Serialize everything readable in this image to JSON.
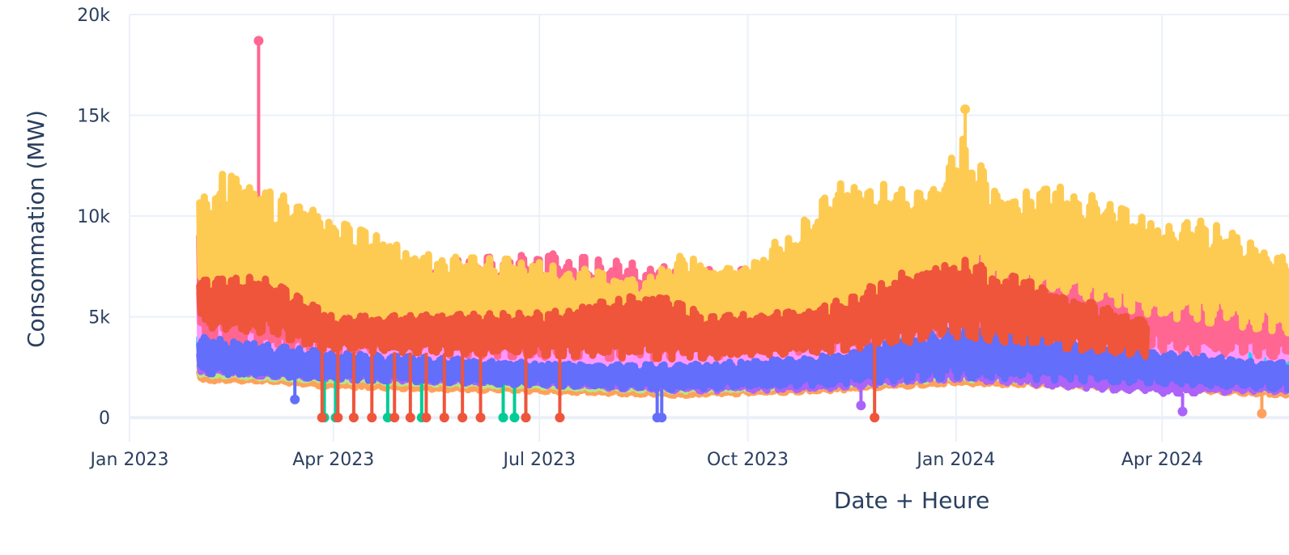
{
  "chart_data": {
    "type": "line",
    "xlabel": "Date + Heure",
    "ylabel": "Consommation (MW)",
    "x_range": [
      "2023-01-01",
      "2024-05-27"
    ],
    "ylim": [
      -1200,
      20000
    ],
    "x_ticks": [
      {
        "date": "2023-01-01",
        "label": "Jan 2023"
      },
      {
        "date": "2023-04-01",
        "label": "Apr 2023"
      },
      {
        "date": "2023-07-01",
        "label": "Jul 2023"
      },
      {
        "date": "2023-10-01",
        "label": "Oct 2023"
      },
      {
        "date": "2024-01-01",
        "label": "Jan 2024"
      },
      {
        "date": "2024-04-01",
        "label": "Apr 2024"
      }
    ],
    "y_ticks": [
      {
        "value": 0,
        "label": "0"
      },
      {
        "value": 5000,
        "label": "5k"
      },
      {
        "value": 10000,
        "label": "10k"
      },
      {
        "value": 15000,
        "label": "15k"
      },
      {
        "value": 20000,
        "label": "20k"
      }
    ],
    "grid": true,
    "legend": "none",
    "series": [
      {
        "color": "#FFA15A",
        "low": [
          [
            "2023-02-01",
            1800
          ],
          [
            "2023-03-01",
            1800
          ],
          [
            "2023-04-01",
            1500
          ],
          [
            "2023-07-01",
            1300
          ],
          [
            "2023-09-01",
            1100
          ],
          [
            "2023-11-01",
            1300
          ],
          [
            "2024-01-01",
            1700
          ],
          [
            "2024-04-01",
            1400
          ],
          [
            "2024-05-27",
            1100
          ]
        ],
        "high": [
          [
            "2023-02-01",
            2400
          ],
          [
            "2023-03-01",
            2400
          ],
          [
            "2023-04-01",
            2100
          ],
          [
            "2023-07-01",
            1800
          ],
          [
            "2023-09-01",
            1600
          ],
          [
            "2023-11-01",
            1900
          ],
          [
            "2024-01-01",
            2300
          ],
          [
            "2024-04-01",
            1900
          ],
          [
            "2024-05-27",
            1600
          ]
        ],
        "spikes": [
          [
            "2024-05-15",
            200
          ]
        ]
      },
      {
        "color": "#B6E880",
        "low": [
          [
            "2023-02-01",
            2100
          ],
          [
            "2023-04-01",
            1800
          ],
          [
            "2023-07-01",
            1500
          ],
          [
            "2023-09-01",
            1300
          ],
          [
            "2023-11-01",
            1500
          ],
          [
            "2024-01-01",
            1900
          ],
          [
            "2024-04-01",
            1600
          ],
          [
            "2024-05-27",
            1300
          ]
        ],
        "high": [
          [
            "2023-02-01",
            2600
          ],
          [
            "2023-04-01",
            2300
          ],
          [
            "2023-07-01",
            2000
          ],
          [
            "2023-09-01",
            1800
          ],
          [
            "2023-11-01",
            2000
          ],
          [
            "2024-01-01",
            2500
          ],
          [
            "2024-04-01",
            2100
          ],
          [
            "2024-05-27",
            1800
          ]
        ],
        "spikes": []
      },
      {
        "color": "#AB63FA",
        "low": [
          [
            "2023-02-01",
            2200
          ],
          [
            "2023-04-01",
            1900
          ],
          [
            "2023-07-01",
            1600
          ],
          [
            "2023-09-01",
            1300
          ],
          [
            "2023-11-01",
            1400
          ],
          [
            "2024-01-01",
            1900
          ],
          [
            "2024-04-01",
            1200
          ],
          [
            "2024-05-27",
            1300
          ]
        ],
        "high": [
          [
            "2023-02-01",
            3200
          ],
          [
            "2023-04-01",
            2800
          ],
          [
            "2023-07-01",
            2400
          ],
          [
            "2023-09-01",
            2200
          ],
          [
            "2023-11-01",
            2500
          ],
          [
            "2024-01-01",
            3200
          ],
          [
            "2024-04-01",
            2600
          ],
          [
            "2024-05-27",
            2200
          ]
        ],
        "spikes": [
          [
            "2023-11-20",
            600
          ],
          [
            "2024-04-10",
            300
          ]
        ]
      },
      {
        "color": "#00CC96",
        "low": [
          [
            "2023-02-01",
            2600
          ],
          [
            "2023-04-01",
            2300
          ],
          [
            "2023-07-01",
            2000
          ],
          [
            "2023-09-01",
            1800
          ],
          [
            "2023-11-01",
            2100
          ],
          [
            "2024-01-01",
            2600
          ],
          [
            "2024-04-01",
            2200
          ],
          [
            "2024-05-27",
            1900
          ]
        ],
        "high": [
          [
            "2023-02-01",
            4000
          ],
          [
            "2023-04-01",
            3400
          ],
          [
            "2023-07-01",
            2900
          ],
          [
            "2023-09-01",
            2700
          ],
          [
            "2023-11-01",
            3100
          ],
          [
            "2024-01-01",
            3800
          ],
          [
            "2024-04-01",
            3300
          ],
          [
            "2024-05-27",
            2800
          ]
        ],
        "spikes": [
          [
            "2023-03-28",
            0
          ],
          [
            "2023-04-02",
            0
          ],
          [
            "2023-04-25",
            0
          ],
          [
            "2023-05-10",
            0
          ],
          [
            "2023-06-15",
            0
          ],
          [
            "2023-06-20",
            0
          ],
          [
            "2023-06-25",
            0
          ]
        ]
      },
      {
        "color": "#19D3F3",
        "low": [
          [
            "2023-02-01",
            2700
          ],
          [
            "2023-04-01",
            2400
          ],
          [
            "2023-07-01",
            2100
          ],
          [
            "2023-09-01",
            1900
          ],
          [
            "2023-11-01",
            2200
          ],
          [
            "2024-01-01",
            2700
          ],
          [
            "2024-04-01",
            2300
          ],
          [
            "2024-05-27",
            2000
          ]
        ],
        "high": [
          [
            "2023-02-01",
            4200
          ],
          [
            "2023-04-01",
            3600
          ],
          [
            "2023-07-01",
            3000
          ],
          [
            "2023-09-01",
            2800
          ],
          [
            "2023-11-01",
            3300
          ],
          [
            "2024-01-01",
            4200
          ],
          [
            "2024-04-01",
            4600
          ],
          [
            "2024-05-27",
            3600
          ]
        ],
        "spikes": []
      },
      {
        "color": "#FF97FF",
        "low": [
          [
            "2023-02-01",
            2900
          ],
          [
            "2023-04-01",
            2600
          ],
          [
            "2023-07-01",
            2300
          ],
          [
            "2023-09-01",
            2100
          ],
          [
            "2023-11-01",
            2500
          ],
          [
            "2024-01-01",
            3000
          ],
          [
            "2024-04-01",
            2800
          ],
          [
            "2024-05-27",
            2600
          ]
        ],
        "high": [
          [
            "2023-02-01",
            6500
          ],
          [
            "2023-04-01",
            5200
          ],
          [
            "2023-07-01",
            4300
          ],
          [
            "2023-09-01",
            4200
          ],
          [
            "2023-11-01",
            5600
          ],
          [
            "2024-01-01",
            8800
          ],
          [
            "2024-04-01",
            6200
          ],
          [
            "2024-05-27",
            5200
          ]
        ],
        "spikes": []
      },
      {
        "color": "#FF6692",
        "low": [
          [
            "2023-02-01",
            3500
          ],
          [
            "2023-04-01",
            3200
          ],
          [
            "2023-07-01",
            3000
          ],
          [
            "2023-09-01",
            2900
          ],
          [
            "2023-11-01",
            3300
          ],
          [
            "2024-01-01",
            3800
          ],
          [
            "2024-04-01",
            3300
          ],
          [
            "2024-05-27",
            3000
          ]
        ],
        "high": [
          [
            "2023-02-01",
            9500
          ],
          [
            "2023-04-01",
            7200
          ],
          [
            "2023-07-01",
            8200
          ],
          [
            "2023-09-01",
            7400
          ],
          [
            "2023-11-01",
            7300
          ],
          [
            "2024-01-01",
            9000
          ],
          [
            "2024-04-01",
            6800
          ],
          [
            "2024-05-27",
            6000
          ]
        ],
        "spikes": [
          [
            "2023-02-27",
            18700
          ]
        ]
      },
      {
        "color": "#636EFA",
        "low": [
          [
            "2023-02-01",
            2200
          ],
          [
            "2023-04-01",
            1900
          ],
          [
            "2023-07-01",
            1600
          ],
          [
            "2023-09-01",
            1400
          ],
          [
            "2023-11-01",
            1600
          ],
          [
            "2024-01-01",
            2000
          ],
          [
            "2024-04-01",
            1700
          ],
          [
            "2024-05-27",
            1400
          ]
        ],
        "high": [
          [
            "2023-02-01",
            4000
          ],
          [
            "2023-04-01",
            3200
          ],
          [
            "2023-07-01",
            2700
          ],
          [
            "2023-09-01",
            2600
          ],
          [
            "2023-11-01",
            3000
          ],
          [
            "2024-01-01",
            4400
          ],
          [
            "2024-04-01",
            3200
          ],
          [
            "2024-05-27",
            2700
          ]
        ],
        "spikes": [
          [
            "2023-03-15",
            900
          ],
          [
            "2023-08-22",
            0
          ],
          [
            "2023-08-24",
            0
          ]
        ]
      },
      {
        "color": "#FECB52",
        "low": [
          [
            "2023-02-01",
            5500
          ],
          [
            "2023-03-01",
            5500
          ],
          [
            "2023-04-01",
            4500
          ],
          [
            "2023-05-15",
            3800
          ],
          [
            "2023-07-01",
            3900
          ],
          [
            "2023-09-01",
            3700
          ],
          [
            "2023-10-15",
            4200
          ],
          [
            "2023-12-01",
            5500
          ],
          [
            "2024-01-01",
            6500
          ],
          [
            "2024-02-15",
            6000
          ],
          [
            "2024-04-01",
            5000
          ],
          [
            "2024-05-27",
            4200
          ]
        ],
        "high": [
          [
            "2023-02-01",
            11000
          ],
          [
            "2023-02-15",
            12500
          ],
          [
            "2023-03-01",
            11500
          ],
          [
            "2023-04-01",
            9800
          ],
          [
            "2023-05-15",
            8000
          ],
          [
            "2023-07-01",
            7800
          ],
          [
            "2023-08-15",
            6800
          ],
          [
            "2023-09-01",
            8000
          ],
          [
            "2023-10-01",
            7500
          ],
          [
            "2023-11-15",
            12000
          ],
          [
            "2023-12-20",
            11000
          ],
          [
            "2024-01-05",
            14000
          ],
          [
            "2024-01-20",
            11000
          ],
          [
            "2024-02-20",
            11500
          ],
          [
            "2024-04-01",
            9500
          ],
          [
            "2024-04-20",
            9800
          ],
          [
            "2024-05-27",
            7800
          ]
        ],
        "spikes": [
          [
            "2024-01-05",
            15300
          ]
        ]
      },
      {
        "color": "#EF553B",
        "low": [
          [
            "2023-02-01",
            4500
          ],
          [
            "2023-03-01",
            4200
          ],
          [
            "2023-04-01",
            3300
          ],
          [
            "2023-07-01",
            3100
          ],
          [
            "2023-09-01",
            2900
          ],
          [
            "2023-11-01",
            3200
          ],
          [
            "2024-01-01",
            4000
          ],
          [
            "2024-03-25",
            3000
          ]
        ],
        "high": [
          [
            "2023-02-01",
            6800
          ],
          [
            "2023-03-01",
            7000
          ],
          [
            "2023-04-01",
            5000
          ],
          [
            "2023-07-01",
            5200
          ],
          [
            "2023-08-20",
            6200
          ],
          [
            "2023-09-15",
            5000
          ],
          [
            "2023-11-01",
            5400
          ],
          [
            "2023-12-15",
            7500
          ],
          [
            "2024-01-05",
            7800
          ],
          [
            "2024-02-01",
            6800
          ],
          [
            "2024-03-25",
            4800
          ]
        ],
        "spikes": [
          [
            "2023-03-27",
            0
          ],
          [
            "2023-04-03",
            0
          ],
          [
            "2023-04-10",
            0
          ],
          [
            "2023-04-18",
            0
          ],
          [
            "2023-04-28",
            0
          ],
          [
            "2023-05-05",
            0
          ],
          [
            "2023-05-12",
            0
          ],
          [
            "2023-05-20",
            0
          ],
          [
            "2023-05-28",
            0
          ],
          [
            "2023-06-05",
            0
          ],
          [
            "2023-06-25",
            0
          ],
          [
            "2023-07-10",
            0
          ],
          [
            "2023-11-26",
            0
          ]
        ]
      }
    ]
  }
}
